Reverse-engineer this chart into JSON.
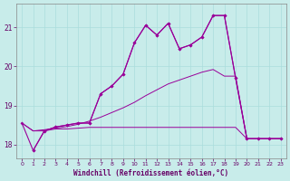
{
  "xlabel": "Windchill (Refroidissement éolien,°C)",
  "bg_color": "#c8ecea",
  "line_color": "#990099",
  "xlim": [
    -0.5,
    23.5
  ],
  "ylim": [
    17.65,
    21.6
  ],
  "yticks": [
    18,
    19,
    20,
    21
  ],
  "xticks": [
    0,
    1,
    2,
    3,
    4,
    5,
    6,
    7,
    8,
    9,
    10,
    11,
    12,
    13,
    14,
    15,
    16,
    17,
    18,
    19,
    20,
    21,
    22,
    23
  ],
  "line1_x": [
    0,
    1,
    2,
    3,
    4,
    5,
    6,
    7,
    8,
    9,
    10,
    11,
    12,
    13,
    14,
    15,
    16,
    17,
    18,
    19,
    20,
    21,
    22,
    23
  ],
  "line1_y": [
    18.55,
    17.85,
    18.35,
    18.45,
    18.5,
    18.55,
    18.55,
    19.3,
    19.5,
    19.8,
    20.6,
    21.05,
    20.8,
    21.1,
    20.45,
    20.55,
    20.75,
    21.3,
    21.3,
    19.7,
    18.15,
    18.15,
    18.15,
    18.15
  ],
  "line2_x": [
    0,
    1,
    2,
    3,
    4,
    5,
    6,
    7,
    8,
    9,
    10,
    11,
    12,
    13,
    14,
    15,
    16,
    17,
    18,
    19,
    20,
    21,
    22,
    23
  ],
  "line2_y": [
    18.55,
    17.85,
    18.35,
    18.45,
    18.5,
    18.55,
    18.55,
    19.3,
    19.5,
    19.8,
    20.6,
    21.05,
    20.8,
    21.1,
    20.45,
    20.55,
    20.75,
    21.3,
    21.3,
    19.7,
    18.15,
    18.15,
    18.15,
    18.15
  ],
  "line3_x": [
    0,
    1,
    2,
    3,
    4,
    5,
    6,
    7,
    8,
    9,
    10,
    11,
    12,
    13,
    14,
    15,
    16,
    17,
    18,
    19,
    20,
    21,
    22,
    23
  ],
  "line3_y": [
    18.55,
    18.35,
    18.35,
    18.4,
    18.4,
    18.42,
    18.44,
    18.44,
    18.44,
    18.44,
    18.44,
    18.44,
    18.44,
    18.44,
    18.44,
    18.44,
    18.44,
    18.44,
    18.44,
    18.44,
    18.15,
    18.15,
    18.15,
    18.15
  ],
  "line4_x": [
    0,
    1,
    2,
    3,
    4,
    5,
    6,
    7,
    8,
    9,
    10,
    11,
    12,
    13,
    14,
    15,
    16,
    17,
    18,
    19,
    20,
    21,
    22,
    23
  ],
  "line4_y": [
    18.55,
    18.35,
    18.38,
    18.42,
    18.46,
    18.52,
    18.6,
    18.7,
    18.82,
    18.94,
    19.08,
    19.25,
    19.4,
    19.55,
    19.65,
    19.75,
    19.85,
    19.92,
    19.75,
    19.75,
    18.15,
    18.15,
    18.15,
    18.15
  ]
}
